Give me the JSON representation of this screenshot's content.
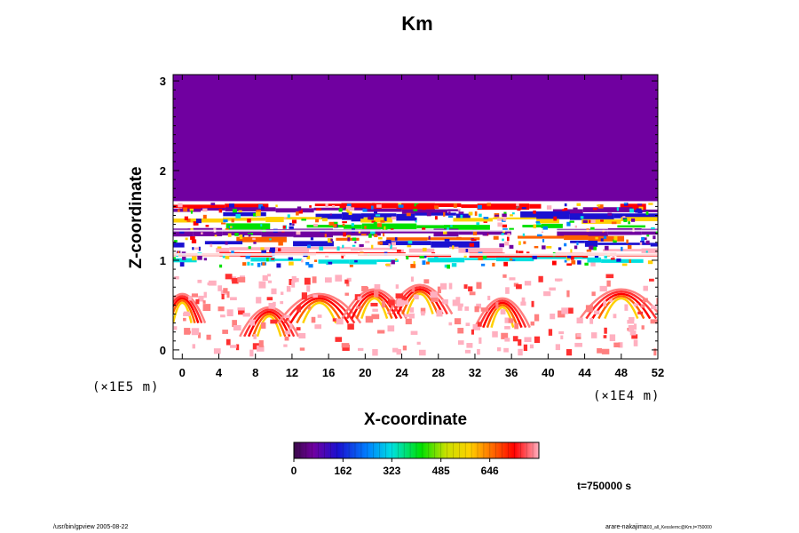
{
  "chart_data": {
    "type": "heatmap",
    "title": "Km",
    "xlabel": "X-coordinate",
    "ylabel": "Z-coordinate",
    "x_scale_label": "(×1E4 m)",
    "y_scale_label": "(×1E5 m)",
    "xlim": [
      -1,
      52
    ],
    "ylim": [
      -0.1,
      3.07
    ],
    "x_ticks": [
      0,
      4,
      8,
      12,
      16,
      20,
      24,
      28,
      32,
      36,
      40,
      44,
      48,
      52
    ],
    "y_ticks": [
      0,
      1,
      2,
      3
    ],
    "colorbar": {
      "ticks": [
        0,
        162,
        323,
        485,
        646
      ],
      "max": 808,
      "colormap": "rainbow (purple-blue-cyan-green-yellow-red-pink)"
    },
    "annotation": "t=750000 s",
    "fields": {
      "upper_region": {
        "z_range": [
          1.65,
          3.07
        ],
        "value": 0
      },
      "turbulent_bands": {
        "z_range": [
          0.95,
          1.65
        ],
        "value_range": [
          0,
          808
        ]
      },
      "boundary_eddies": {
        "z_range": [
          0.0,
          0.85
        ],
        "value_range": [
          0,
          808
        ]
      }
    }
  },
  "footer": {
    "left": "/usr/bin/gpview 2005-08-22",
    "right": "arare-nakajima",
    "right_small": "03_all_Kesslernc@Km,t=750000"
  }
}
